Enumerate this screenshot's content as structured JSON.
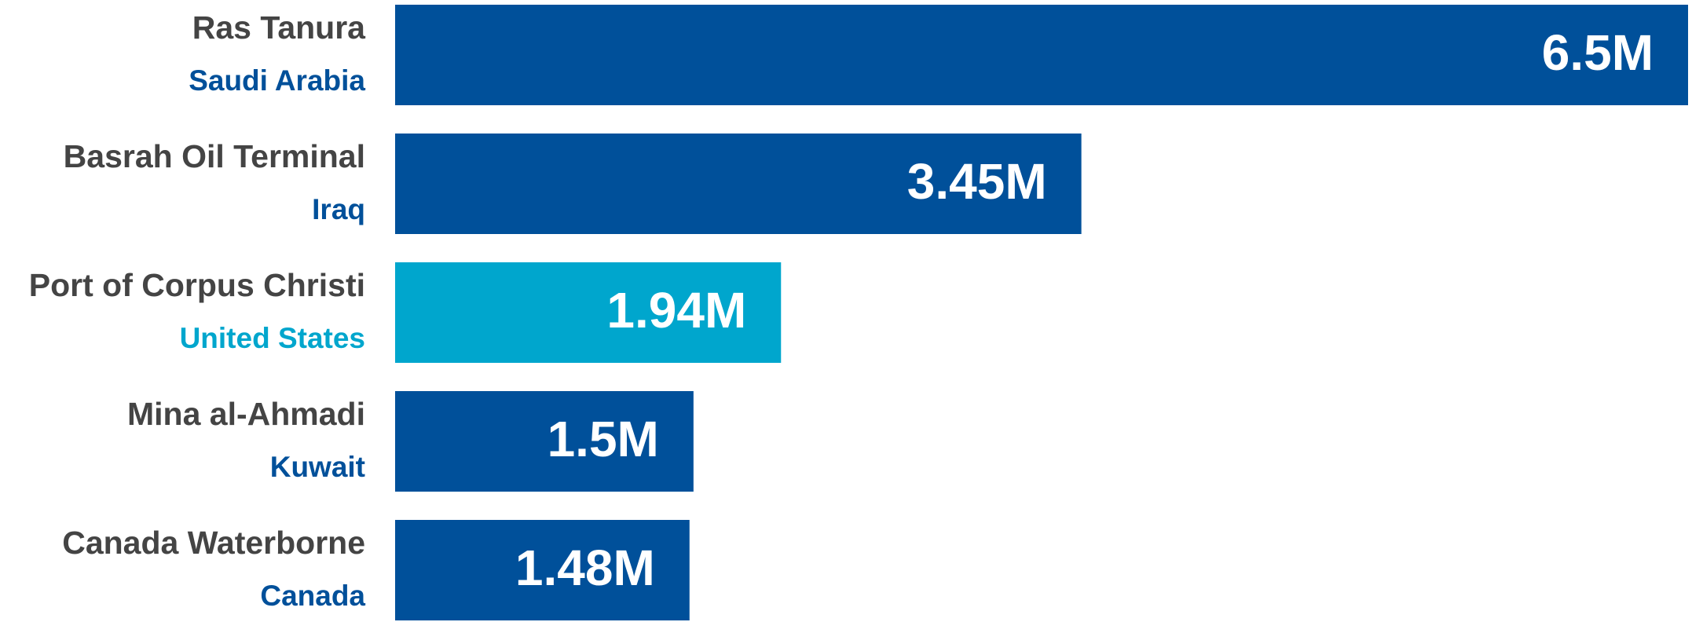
{
  "chart_data": {
    "type": "bar",
    "orientation": "horizontal",
    "categories": [
      "Ras Tanura",
      "Basrah Oil Terminal",
      "Port of Corpus Christi",
      "Mina al-Ahmadi",
      "Canada Waterborne"
    ],
    "sublabels": [
      "Saudi Arabia",
      "Iraq",
      "United States",
      "Kuwait",
      "Canada"
    ],
    "values": [
      6.5,
      3.45,
      1.94,
      1.5,
      1.48
    ],
    "value_labels": [
      "6.5M",
      "3.45M",
      "1.94M",
      "1.5M",
      "1.48M"
    ],
    "colors": [
      "#00509a",
      "#00509a",
      "#00a6cd",
      "#00509a",
      "#00509a"
    ]
  }
}
